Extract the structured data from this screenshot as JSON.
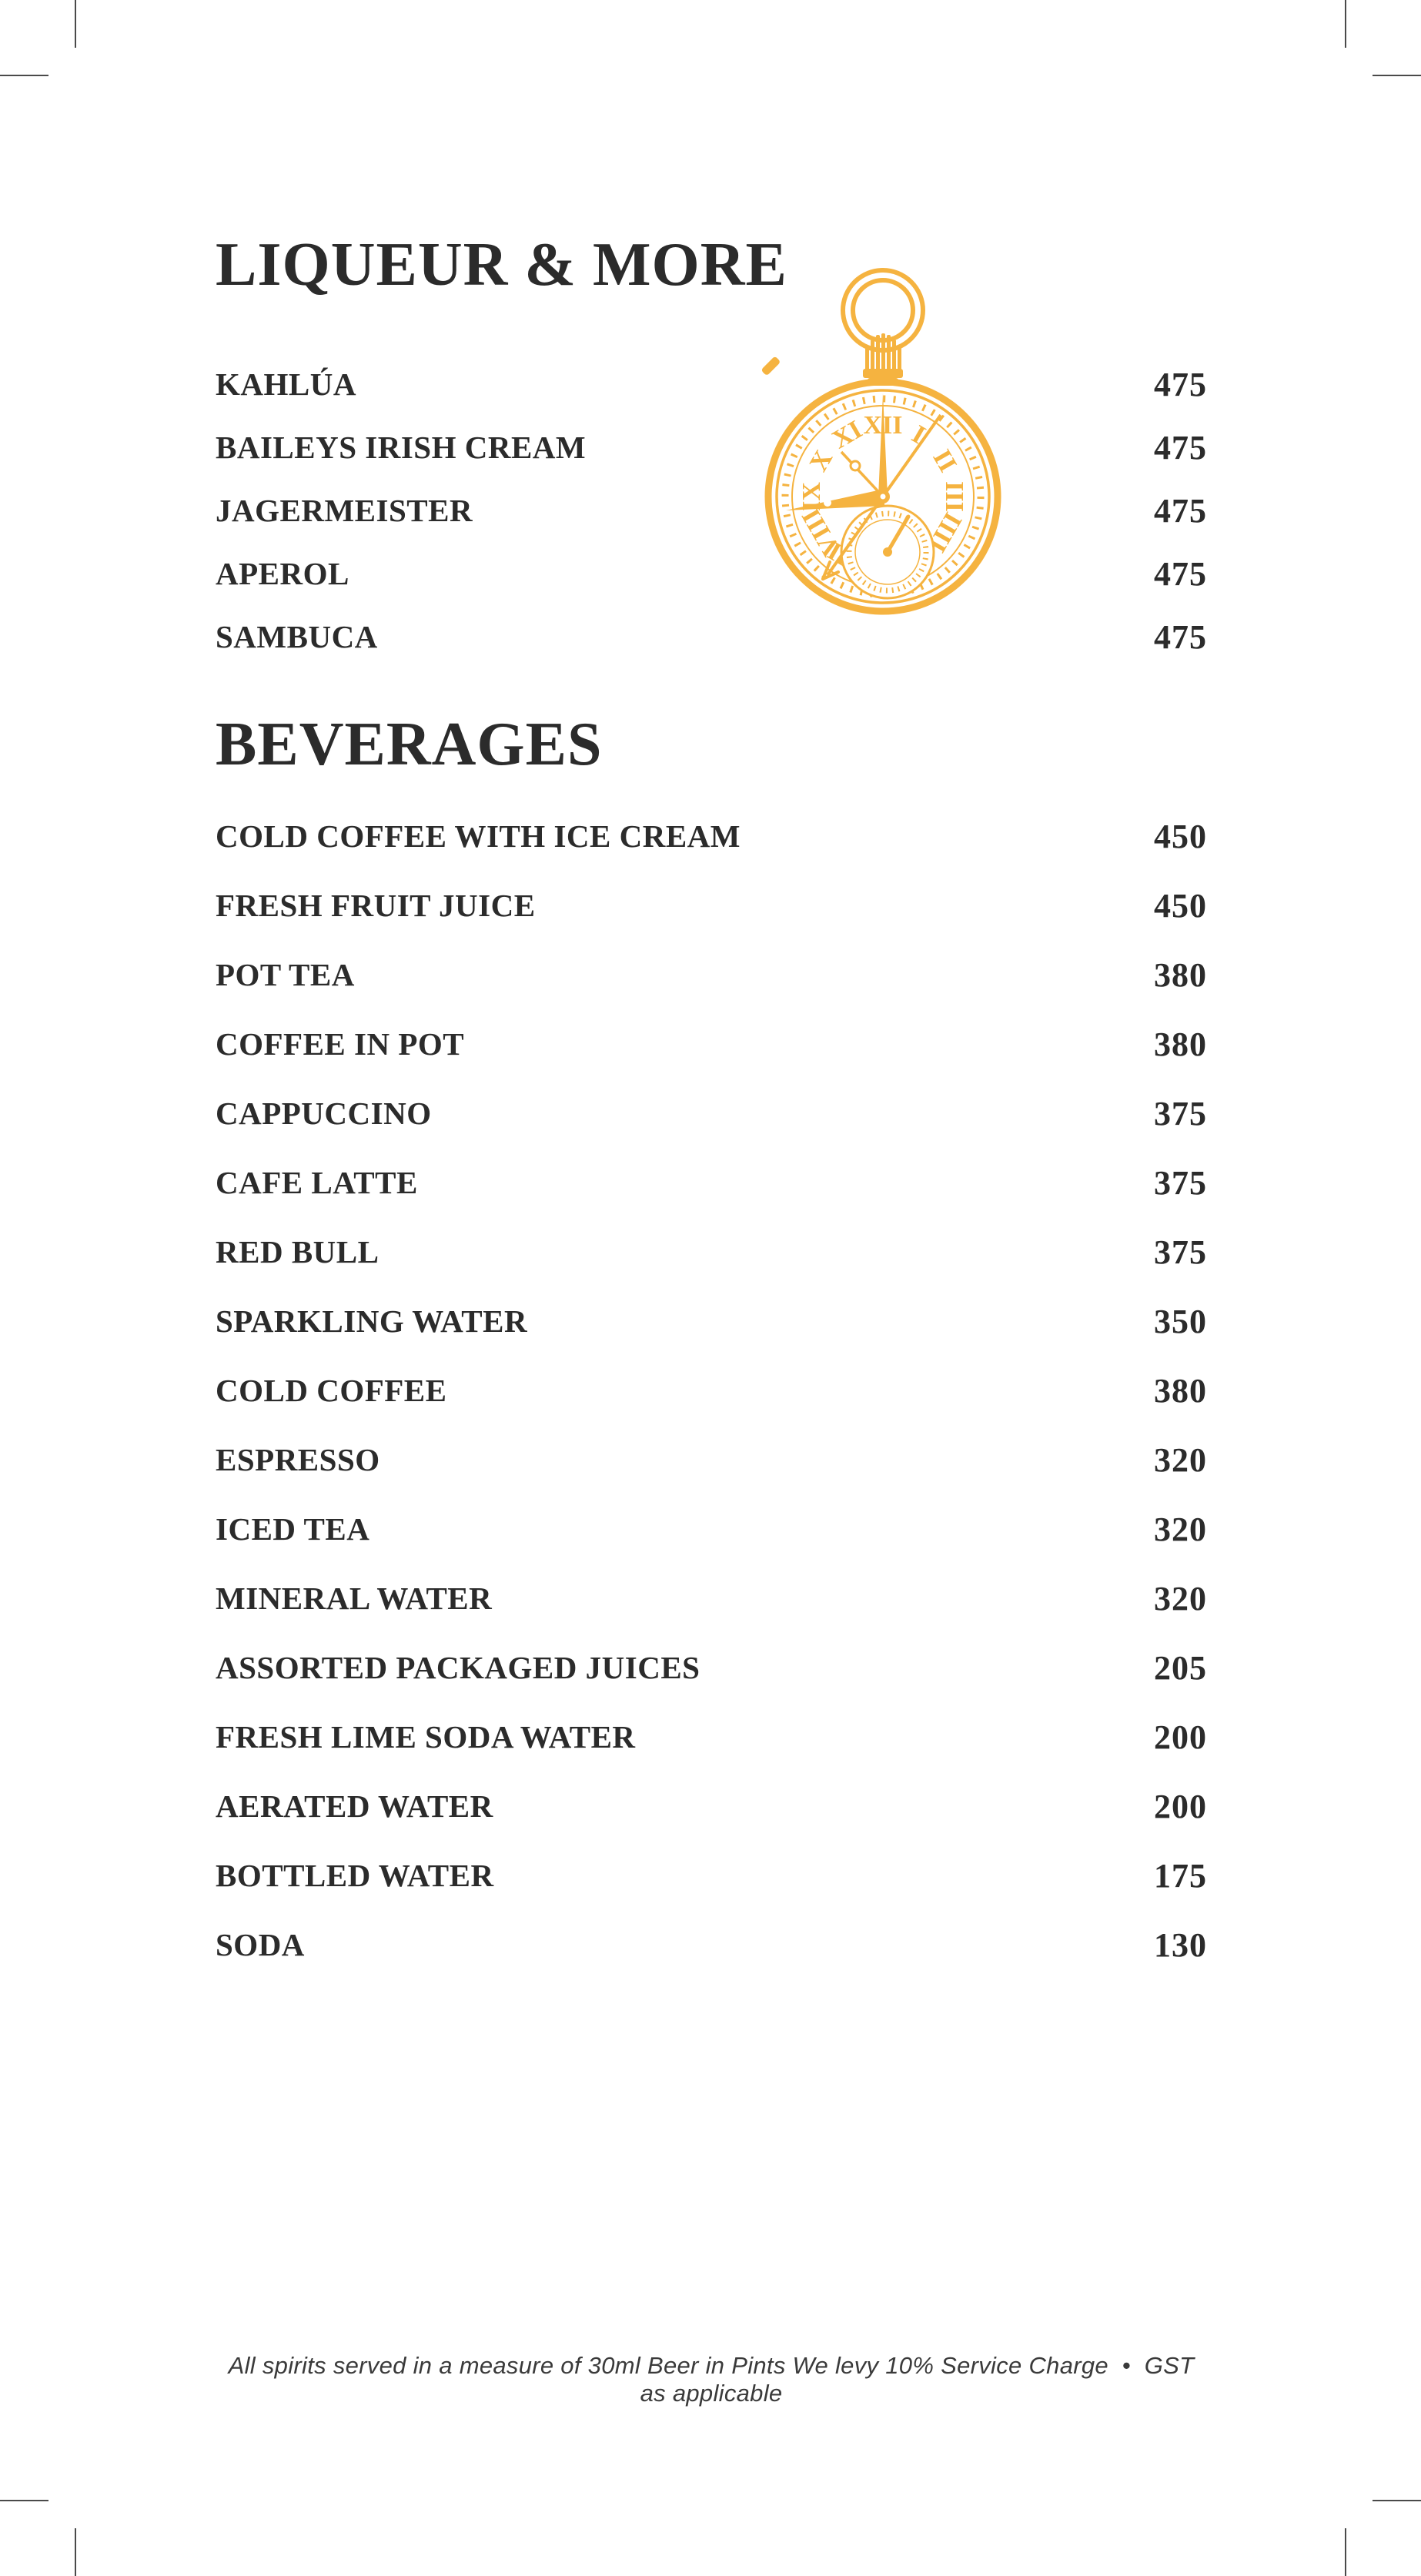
{
  "colors": {
    "accent_gold": "#F5B340",
    "text": "#2B2B2B",
    "crop_mark": "#4A4A4A"
  },
  "sections": [
    {
      "title": "LIQUEUR & MORE",
      "items": [
        {
          "name": "KAHLÚA",
          "price": "475"
        },
        {
          "name": "BAILEYS IRISH CREAM",
          "price": "475"
        },
        {
          "name": "JAGERMEISTER",
          "price": "475"
        },
        {
          "name": "APEROL",
          "price": "475"
        },
        {
          "name": "SAMBUCA",
          "price": "475"
        }
      ]
    },
    {
      "title": "BEVERAGES",
      "items": [
        {
          "name": "COLD COFFEE WITH ICE CREAM",
          "price": "450"
        },
        {
          "name": "FRESH FRUIT JUICE",
          "price": "450"
        },
        {
          "name": "POT TEA",
          "price": "380"
        },
        {
          "name": "COFFEE IN POT",
          "price": "380"
        },
        {
          "name": "CAPPUCCINO",
          "price": "375"
        },
        {
          "name": "CAFE LATTE",
          "price": "375"
        },
        {
          "name": "RED BULL",
          "price": "375"
        },
        {
          "name": "SPARKLING WATER",
          "price": "350"
        },
        {
          "name": "COLD COFFEE",
          "price": "380"
        },
        {
          "name": "ESPRESSO",
          "price": "320"
        },
        {
          "name": "ICED TEA",
          "price": "320"
        },
        {
          "name": "MINERAL WATER",
          "price": "320"
        },
        {
          "name": "ASSORTED PACKAGED JUICES",
          "price": "205"
        },
        {
          "name": "FRESH LIME SODA WATER",
          "price": "200"
        },
        {
          "name": "AERATED WATER",
          "price": "200"
        },
        {
          "name": "BOTTLED WATER",
          "price": "175"
        },
        {
          "name": "SODA",
          "price": "130"
        }
      ]
    }
  ],
  "decor": {
    "watch_icon": "pocket-watch-icon",
    "watch_numerals": [
      "XII",
      "I",
      "II",
      "III",
      "IIII",
      "V",
      "VI",
      "VII",
      "VIII",
      "IX",
      "X",
      "XI"
    ]
  },
  "footer": {
    "note": "All spirits served in a measure of 30ml Beer in Pints We levy 10% Service Charge  •  GST as applicable"
  }
}
